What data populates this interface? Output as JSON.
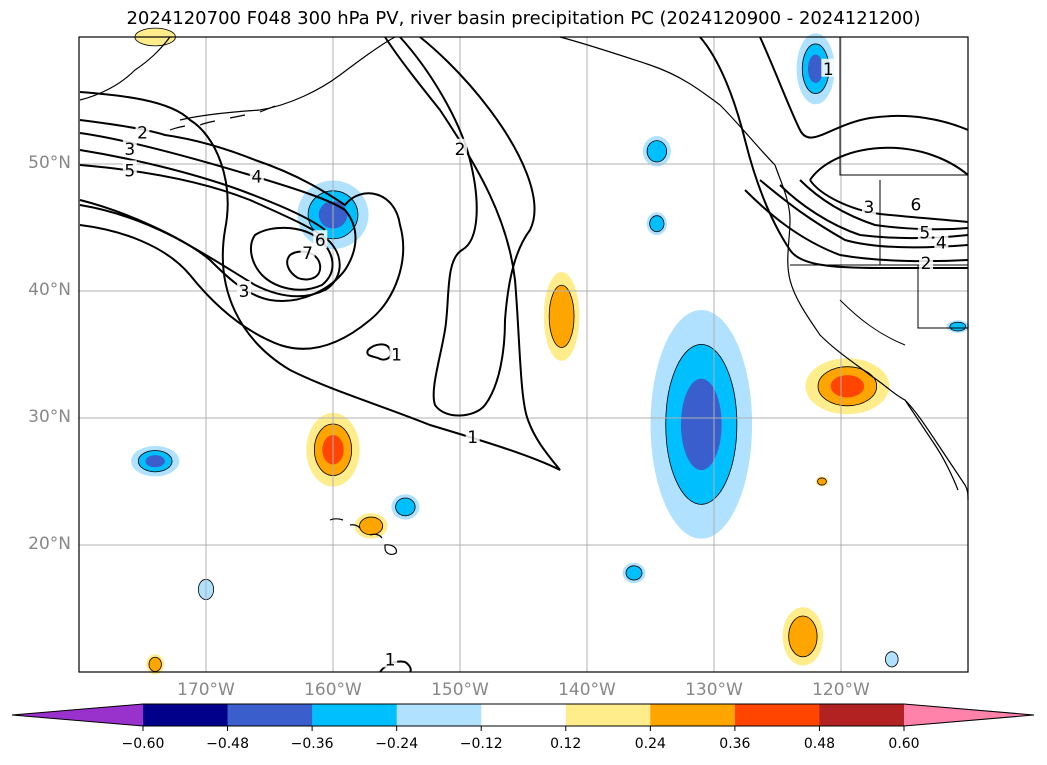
{
  "title": "2024120700 F048 300 hPa PV, river basin precipitation PC (2024120900 - 2024121200)",
  "lat_labels": [
    {
      "value": 50,
      "text": "50°N"
    },
    {
      "value": 40,
      "text": "40°N"
    },
    {
      "value": 30,
      "text": "30°N"
    },
    {
      "value": 20,
      "text": "20°N"
    }
  ],
  "lon_labels": [
    {
      "value": -170,
      "text": "170°W"
    },
    {
      "value": -160,
      "text": "160°W"
    },
    {
      "value": -150,
      "text": "150°W"
    },
    {
      "value": -140,
      "text": "140°W"
    },
    {
      "value": -130,
      "text": "130°W"
    },
    {
      "value": -120,
      "text": "120°W"
    }
  ],
  "map_extent": {
    "lon_min": -180,
    "lon_max": -110,
    "lat_min": 10,
    "lat_max": 60
  },
  "colorbar": {
    "ticks": [
      "−0.60",
      "−0.48",
      "−0.36",
      "−0.24",
      "−0.12",
      "0.12",
      "0.24",
      "0.36",
      "0.48",
      "0.60"
    ],
    "colors": [
      "#9932CC",
      "#00008B",
      "#3A5FCD",
      "#00BFFF",
      "#B0E2FF",
      "#FFFFFF",
      "#FFEC8B",
      "#FFA500",
      "#FF4500",
      "#B22222",
      "#FF82AB"
    ]
  },
  "pv_contour_labels": [
    {
      "text": "2",
      "lon": -175,
      "lat": 52.5
    },
    {
      "text": "3",
      "lon": -176,
      "lat": 51.2
    },
    {
      "text": "5",
      "lon": -176,
      "lat": 49.5
    },
    {
      "text": "4",
      "lon": -166,
      "lat": 49
    },
    {
      "text": "6",
      "lon": -161,
      "lat": 44
    },
    {
      "text": "7",
      "lon": -162,
      "lat": 43
    },
    {
      "text": "3",
      "lon": -167,
      "lat": 40
    },
    {
      "text": "2",
      "lon": -150,
      "lat": 51.2
    },
    {
      "text": "1",
      "lon": -155,
      "lat": 35
    },
    {
      "text": "1",
      "lon": -149,
      "lat": 28.5
    },
    {
      "text": "1",
      "lon": -155.5,
      "lat": 11
    },
    {
      "text": "1",
      "lon": -121,
      "lat": 57.5
    },
    {
      "text": "3",
      "lon": -117.8,
      "lat": 46.6
    },
    {
      "text": "6",
      "lon": -114.1,
      "lat": 46.8
    },
    {
      "text": "5",
      "lon": -113.4,
      "lat": 44.6
    },
    {
      "text": "4",
      "lon": -112.1,
      "lat": 43.8
    },
    {
      "text": "2",
      "lon": -113.3,
      "lat": 42.2
    }
  ],
  "precip_patches": [
    {
      "lon": -160,
      "lat": 46,
      "rx": 2.8,
      "ry": 2.7,
      "levels": [
        "#B0E2FF",
        "#00BFFF",
        "#3A5FCD"
      ]
    },
    {
      "lon": -160,
      "lat": 27.5,
      "rx": 2.1,
      "ry": 2.9,
      "levels": [
        "#FFEC8B",
        "#FFA500",
        "#FF4500"
      ]
    },
    {
      "lon": -174,
      "lat": 26.6,
      "rx": 1.9,
      "ry": 1.2,
      "levels": [
        "#B0E2FF",
        "#00BFFF",
        "#3A5FCD"
      ]
    },
    {
      "lon": -142,
      "lat": 38,
      "rx": 1.4,
      "ry": 3.5,
      "levels": [
        "#FFEC8B",
        "#FFA500"
      ]
    },
    {
      "lon": -131,
      "lat": 29.5,
      "rx": 4,
      "ry": 9,
      "levels": [
        "#B0E2FF",
        "#00BFFF",
        "#3A5FCD"
      ]
    },
    {
      "lon": -119.5,
      "lat": 32.5,
      "rx": 3.3,
      "ry": 2.2,
      "levels": [
        "#FFEC8B",
        "#FFA500",
        "#FF4500"
      ]
    },
    {
      "lon": -123,
      "lat": 12.8,
      "rx": 1.6,
      "ry": 2.3,
      "levels": [
        "#FFEC8B",
        "#FFA500"
      ]
    },
    {
      "lon": -122,
      "lat": 57.5,
      "rx": 1.5,
      "ry": 2.8,
      "levels": [
        "#B0E2FF",
        "#00BFFF",
        "#3A5FCD"
      ]
    },
    {
      "lon": -134.5,
      "lat": 51,
      "rx": 1.1,
      "ry": 1.2,
      "levels": [
        "#B0E2FF",
        "#00BFFF"
      ]
    },
    {
      "lon": -134.5,
      "lat": 45.3,
      "rx": 0.8,
      "ry": 0.9,
      "levels": [
        "#B0E2FF",
        "#00BFFF"
      ]
    },
    {
      "lon": -157,
      "lat": 21.5,
      "rx": 1.3,
      "ry": 1.0,
      "levels": [
        "#FFEC8B",
        "#FFA500"
      ]
    },
    {
      "lon": -154.3,
      "lat": 23,
      "rx": 1.1,
      "ry": 1.0,
      "levels": [
        "#B0E2FF",
        "#00BFFF"
      ]
    },
    {
      "lon": -136.3,
      "lat": 17.8,
      "rx": 0.9,
      "ry": 0.8,
      "levels": [
        "#B0E2FF",
        "#00BFFF"
      ]
    },
    {
      "lon": -170,
      "lat": 16.5,
      "rx": 0.6,
      "ry": 0.8,
      "levels": [
        "#B0E2FF"
      ]
    },
    {
      "lon": -174,
      "lat": 10.6,
      "rx": 0.7,
      "ry": 0.8,
      "levels": [
        "#FFEC8B",
        "#FFA500"
      ]
    },
    {
      "lon": -116,
      "lat": 11,
      "rx": 0.5,
      "ry": 0.6,
      "levels": [
        "#B0E2FF"
      ]
    },
    {
      "lon": -121.5,
      "lat": 25,
      "rx": 0.5,
      "ry": 0.4,
      "levels": [
        "#FFEC8B",
        "#FFA500"
      ]
    },
    {
      "lon": -110.8,
      "lat": 37.2,
      "rx": 0.9,
      "ry": 0.5,
      "levels": [
        "#B0E2FF",
        "#00BFFF"
      ]
    },
    {
      "lon": -174,
      "lat": 60,
      "rx": 1.6,
      "ry": 0.7,
      "levels": [
        "#FFEC8B"
      ]
    }
  ]
}
